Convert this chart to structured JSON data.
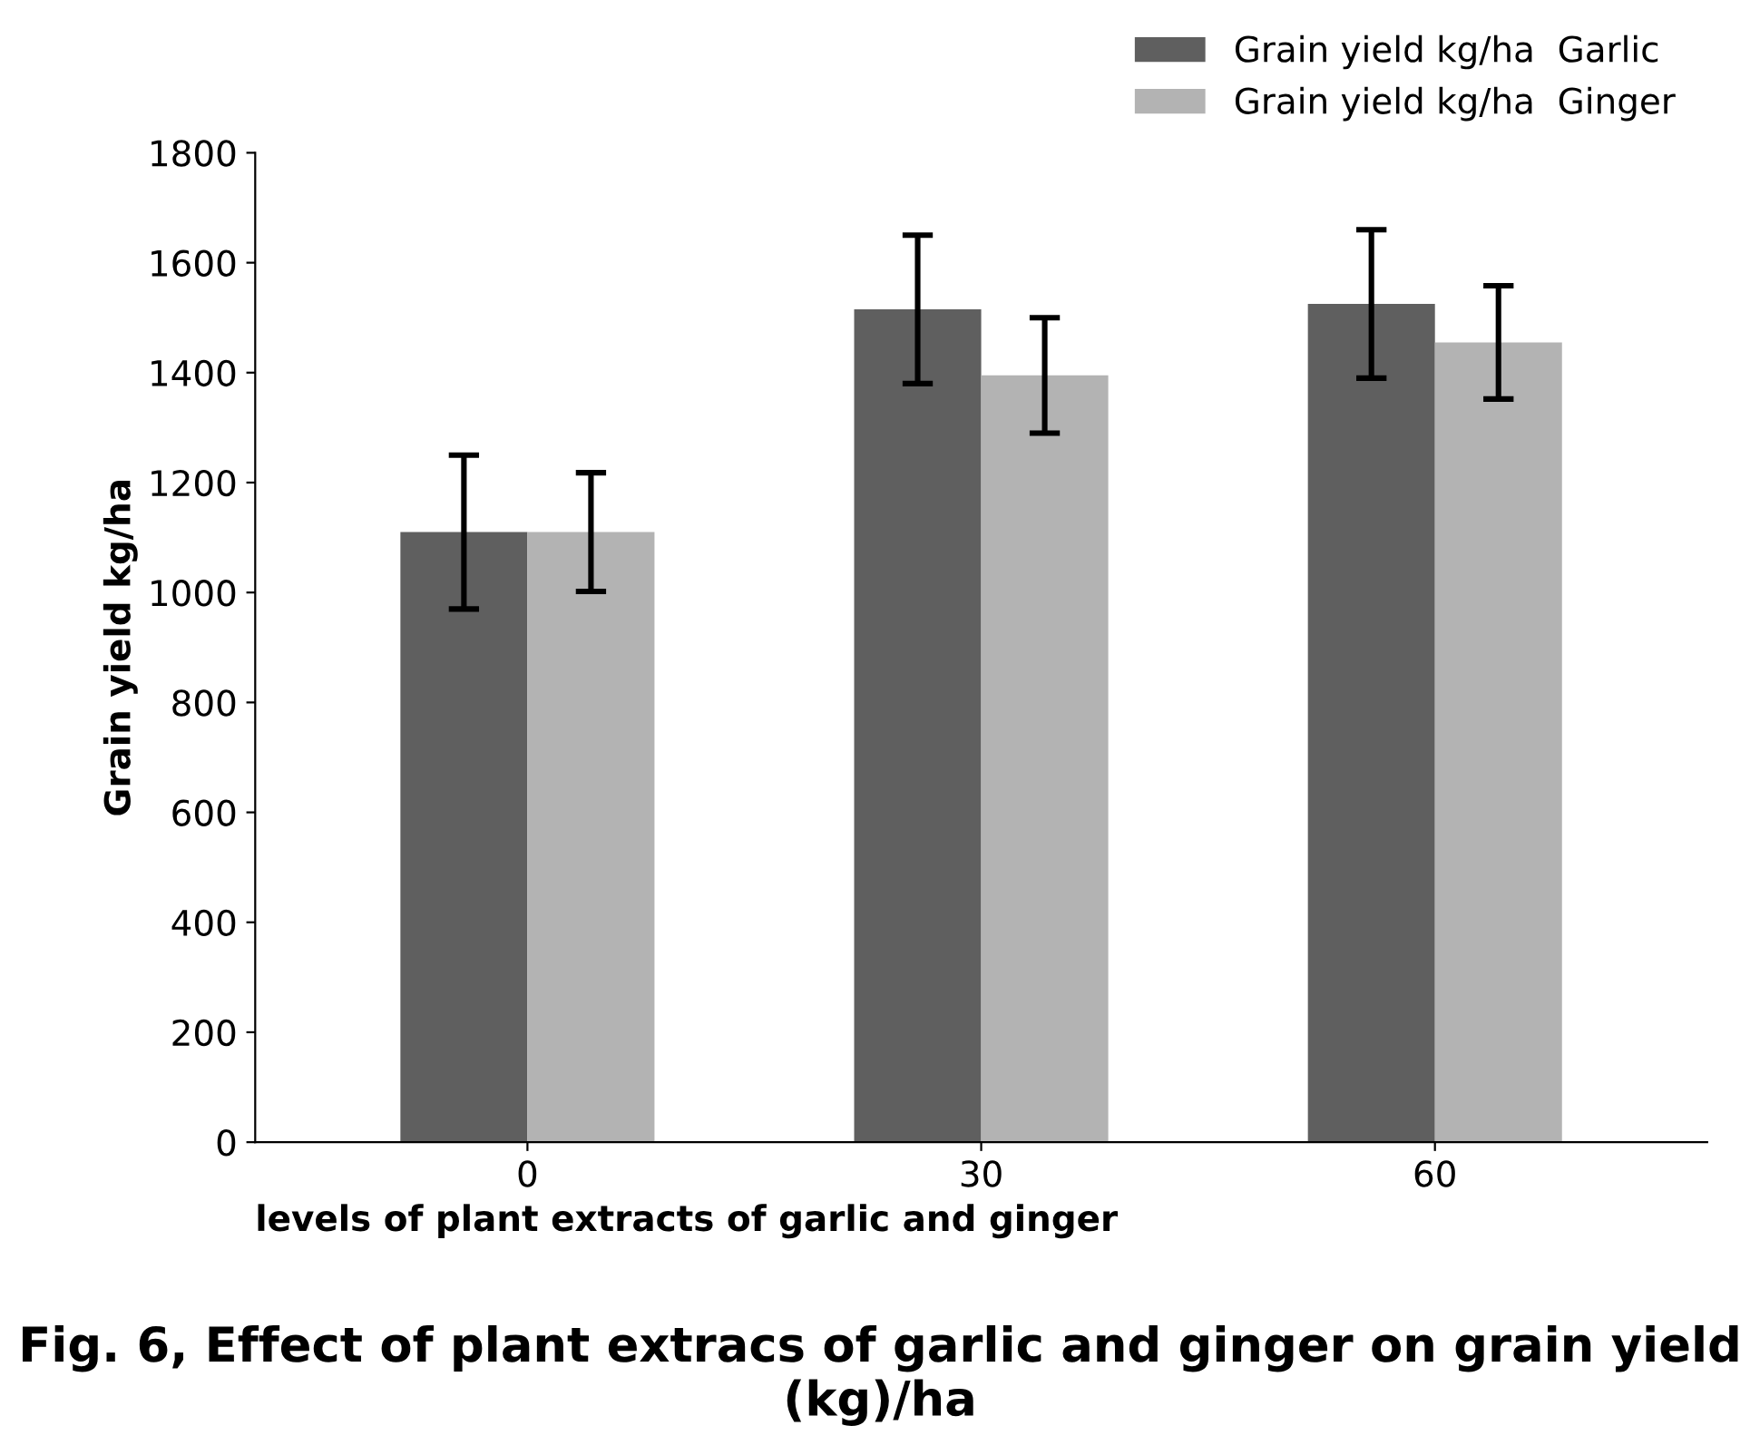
{
  "chart_data": {
    "type": "bar",
    "title": "Fig. 6, Effect of plant extracs of garlic and ginger on grain yield (kg)/ha",
    "xlabel": "levels of plant extracts of garlic and ginger",
    "ylabel": "Grain yield kg/ha",
    "categories": [
      "0",
      "30",
      "60"
    ],
    "series": [
      {
        "name": "Grain yield kg/ha  Garlic",
        "color": "#5f5f5f",
        "values": [
          1110,
          1515,
          1525
        ],
        "errors": [
          140,
          135,
          135
        ]
      },
      {
        "name": "Grain yield kg/ha  Ginger",
        "color": "#b3b3b3",
        "values": [
          1110,
          1395,
          1455
        ],
        "errors": [
          108,
          105,
          103
        ]
      }
    ],
    "ylim": [
      0,
      1800
    ],
    "yticks": [
      0,
      200,
      400,
      600,
      800,
      1000,
      1200,
      1400,
      1600,
      1800
    ],
    "grid": false,
    "legend": "top right"
  }
}
